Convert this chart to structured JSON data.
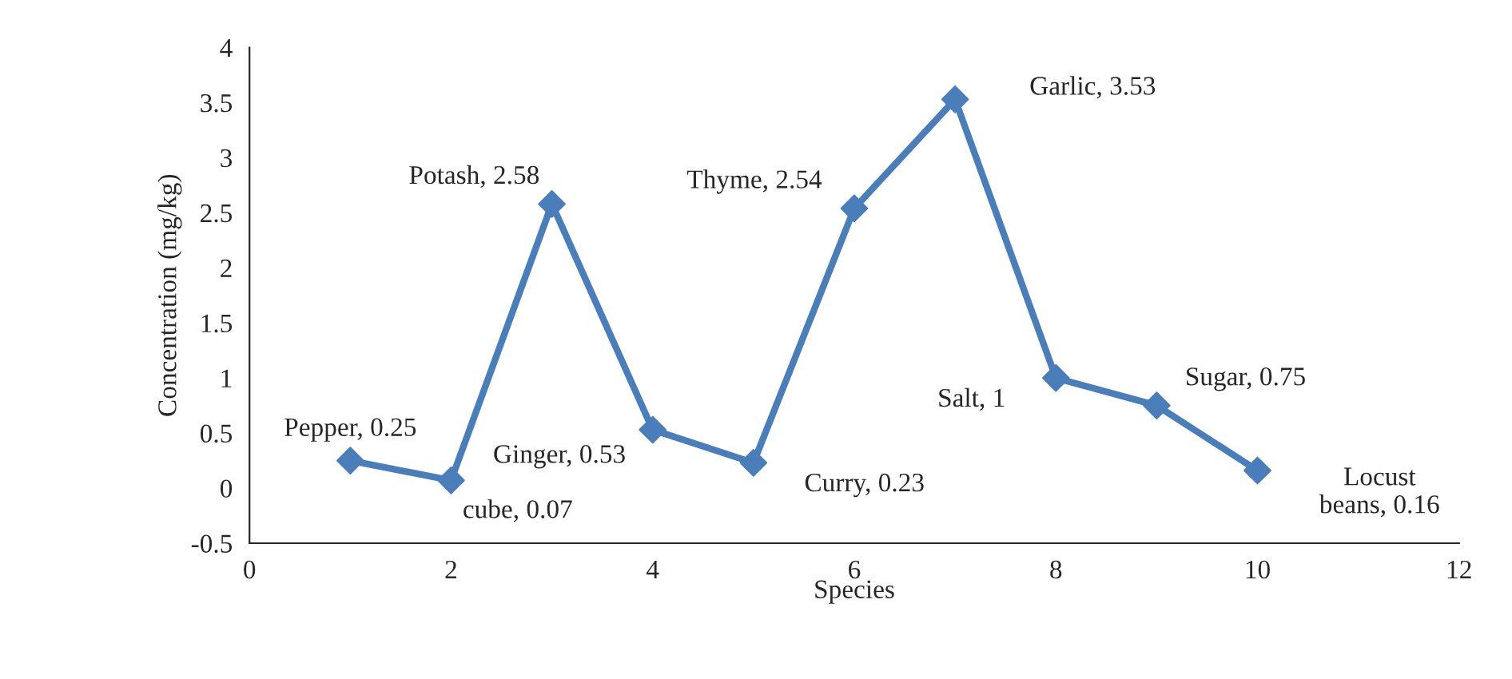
{
  "chart_data": {
    "type": "line",
    "xlabel": "Species",
    "ylabel": "Concentration (mg/kg)",
    "x": [
      1,
      2,
      3,
      4,
      5,
      6,
      7,
      8,
      9,
      10
    ],
    "series": [
      {
        "color": "#4a7ebb",
        "values": [
          0.25,
          0.07,
          2.58,
          0.53,
          0.23,
          2.54,
          3.53,
          1,
          0.75,
          0.16
        ]
      }
    ],
    "xlim": [
      0,
      12
    ],
    "xticks": [
      0,
      2,
      4,
      6,
      8,
      10,
      12
    ],
    "ylim": [
      -0.5,
      4
    ],
    "yticks": [
      -0.5,
      0,
      0.5,
      1,
      1.5,
      2,
      2.5,
      3,
      3.5,
      4
    ],
    "marker": "diamond",
    "line_style": "solid",
    "grid": false,
    "legend": false,
    "annotations": [
      {
        "text": "Pepper, 0.25",
        "x": 1,
        "y": 0.25
      },
      {
        "text": "cube, 0.07",
        "x": 2,
        "y": 0.07
      },
      {
        "text": "Potash, 2.58",
        "x": 3,
        "y": 2.58
      },
      {
        "text": "Ginger, 0.53",
        "x": 4,
        "y": 0.53
      },
      {
        "text": "Curry, 0.23",
        "x": 5,
        "y": 0.23
      },
      {
        "text": "Thyme, 2.54",
        "x": 6,
        "y": 2.54
      },
      {
        "text": "Garlic, 3.53",
        "x": 7,
        "y": 3.53
      },
      {
        "text": "Salt, 1",
        "x": 8,
        "y": 1
      },
      {
        "text": "Sugar, 0.75",
        "x": 9,
        "y": 0.75
      },
      {
        "text": "Locust\nbeans, 0.16",
        "x": 10,
        "y": 0.16
      }
    ]
  }
}
